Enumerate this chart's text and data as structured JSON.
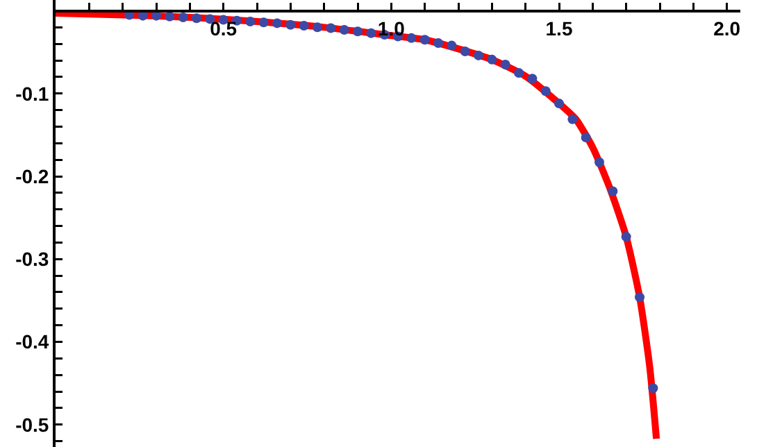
{
  "chart_data": {
    "type": "line",
    "xlim": [
      0,
      2.04
    ],
    "ylim": [
      -0.527,
      0.013
    ],
    "xticks": [
      {
        "value": 0.1,
        "label": null
      },
      {
        "value": 0.2,
        "label": null
      },
      {
        "value": 0.3,
        "label": null
      },
      {
        "value": 0.4,
        "label": null
      },
      0.5,
      {
        "value": 0.6,
        "label": null
      },
      {
        "value": 0.7,
        "label": null
      },
      {
        "value": 0.8,
        "label": null
      },
      {
        "value": 0.9,
        "label": null
      },
      {
        "value": 1,
        "label": "1.0"
      },
      {
        "value": 1.1,
        "label": null
      },
      {
        "value": 1.2,
        "label": null
      },
      {
        "value": 1.3,
        "label": null
      },
      {
        "value": 1.4,
        "label": null
      },
      1.5,
      {
        "value": 1.6,
        "label": null
      },
      {
        "value": 1.7,
        "label": null
      },
      {
        "value": 1.8,
        "label": null
      },
      {
        "value": 1.9,
        "label": null
      },
      {
        "value": 2,
        "label": "2.0"
      }
    ],
    "yticks": [
      {
        "value": -0.02,
        "label": null
      },
      {
        "value": -0.04,
        "label": null
      },
      {
        "value": -0.06,
        "label": null
      },
      {
        "value": -0.08,
        "label": null
      },
      -0.1,
      {
        "value": -0.12,
        "label": null
      },
      {
        "value": -0.14,
        "label": null
      },
      {
        "value": -0.16,
        "label": null
      },
      {
        "value": -0.18,
        "label": null
      },
      -0.2,
      {
        "value": -0.22,
        "label": null
      },
      {
        "value": -0.24,
        "label": null
      },
      {
        "value": -0.26,
        "label": null
      },
      {
        "value": -0.28,
        "label": null
      },
      -0.3,
      {
        "value": -0.32,
        "label": null
      },
      {
        "value": -0.34,
        "label": null
      },
      {
        "value": -0.36,
        "label": null
      },
      {
        "value": -0.38,
        "label": null
      },
      -0.4,
      {
        "value": -0.42,
        "label": null
      },
      {
        "value": -0.44,
        "label": null
      },
      {
        "value": -0.46,
        "label": null
      },
      {
        "value": -0.48,
        "label": null
      },
      -0.5,
      {
        "value": -0.52,
        "label": null
      }
    ],
    "grid": false,
    "series": [
      {
        "type": "line",
        "color": "#ff0000",
        "marker": "none",
        "line_style": "solid",
        "x": [
          0,
          0.2,
          0.4,
          0.6,
          0.8,
          1.0,
          1.1,
          1.2,
          1.3,
          1.4,
          1.5,
          1.55,
          1.6,
          1.65,
          1.7,
          1.74,
          1.77,
          1.79
        ],
        "values": [
          -0.003,
          -0.005,
          -0.008,
          -0.013,
          -0.02,
          -0.03,
          -0.035,
          -0.046,
          -0.059,
          -0.079,
          -0.112,
          -0.131,
          -0.165,
          -0.213,
          -0.273,
          -0.346,
          -0.43,
          -0.517
        ]
      },
      {
        "type": "scatter",
        "color": "#3d4aa5",
        "marker": "circle",
        "x": [
          0.22,
          0.26,
          0.3,
          0.34,
          0.38,
          0.42,
          0.46,
          0.5,
          0.54,
          0.58,
          0.62,
          0.66,
          0.7,
          0.74,
          0.78,
          0.82,
          0.86,
          0.9,
          0.94,
          0.98,
          1.02,
          1.06,
          1.1,
          1.14,
          1.18,
          1.22,
          1.26,
          1.3,
          1.34,
          1.38,
          1.42,
          1.46,
          1.5,
          1.54,
          1.58,
          1.62,
          1.66,
          1.7,
          1.74,
          1.78
        ],
        "values": [
          -0.005,
          -0.006,
          -0.006,
          -0.007,
          -0.008,
          -0.009,
          -0.01,
          -0.011,
          -0.012,
          -0.013,
          -0.014,
          -0.015,
          -0.017,
          -0.018,
          -0.02,
          -0.021,
          -0.023,
          -0.025,
          -0.027,
          -0.029,
          -0.031,
          -0.033,
          -0.035,
          -0.039,
          -0.042,
          -0.049,
          -0.054,
          -0.059,
          -0.065,
          -0.075,
          -0.082,
          -0.097,
          -0.112,
          -0.131,
          -0.153,
          -0.183,
          -0.218,
          -0.273,
          -0.346,
          -0.456
        ]
      }
    ]
  }
}
